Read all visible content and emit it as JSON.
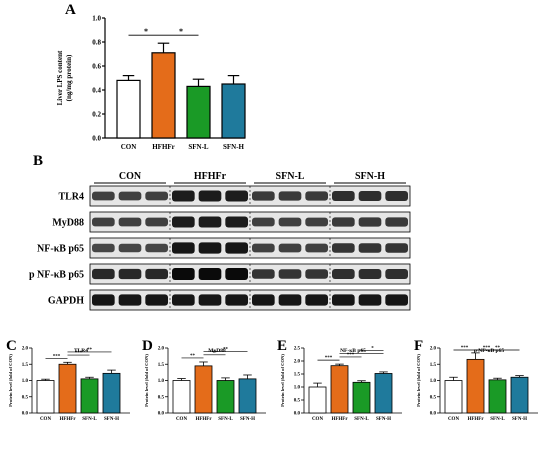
{
  "panel_letters": {
    "A": "A",
    "B": "B",
    "C": "C",
    "D": "D",
    "E": "E",
    "F": "F"
  },
  "colors": {
    "CON": "#ffffff",
    "HFHFr": "#e46c1a",
    "SFN-L": "#1a9a26",
    "SFN-H": "#1f7a9c",
    "axis": "#000000"
  },
  "blot": {
    "groups": [
      "CON",
      "HFHFr",
      "SFN-L",
      "SFN-H"
    ],
    "rows": [
      {
        "label": "TLR4",
        "intensity": [
          0.55,
          0.85,
          0.6,
          0.7
        ]
      },
      {
        "label": "MyD88",
        "intensity": [
          0.55,
          0.85,
          0.55,
          0.6
        ]
      },
      {
        "label": "NF-κB p65",
        "intensity": [
          0.5,
          0.9,
          0.55,
          0.65
        ]
      },
      {
        "label": "p NF-κB p65",
        "intensity": [
          0.75,
          1.0,
          0.65,
          0.7
        ]
      },
      {
        "label": "GAPDH",
        "intensity": [
          0.9,
          0.9,
          0.9,
          0.9
        ]
      }
    ]
  },
  "chart_data": [
    {
      "id": "A",
      "type": "bar",
      "categories": [
        "CON",
        "HFHFr",
        "SFN-L",
        "SFN-H"
      ],
      "values": [
        0.48,
        0.71,
        0.43,
        0.45
      ],
      "errors": [
        0.04,
        0.08,
        0.06,
        0.07
      ],
      "ylabel_line1": "Liver LPS content",
      "ylabel_line2": "(ng/mg protein)",
      "ylim": [
        0,
        1.0
      ],
      "yticks": [
        "0.0",
        "0.2",
        "0.4",
        "0.6",
        "0.8",
        "1.0"
      ],
      "significance": [
        {
          "from": 0,
          "to": 1,
          "label": "*"
        },
        {
          "from": 1,
          "to": 2,
          "label": "*"
        }
      ]
    },
    {
      "id": "C",
      "type": "bar",
      "title": "TLR4",
      "categories": [
        "CON",
        "HFHFr",
        "SFN-L",
        "SFN-H"
      ],
      "values": [
        1.0,
        1.5,
        1.05,
        1.22
      ],
      "errors": [
        0.04,
        0.06,
        0.05,
        0.1
      ],
      "ylabel": "Protein level (fold of CON)",
      "ylim": [
        0,
        2.0
      ],
      "yticks": [
        "0.0",
        "0.5",
        "1.0",
        "1.5",
        "2.0"
      ],
      "significance": [
        {
          "from": 0,
          "to": 1,
          "label": "***"
        },
        {
          "from": 1,
          "to": 2,
          "label": "***"
        },
        {
          "from": 1,
          "to": 3,
          "label": "**"
        }
      ]
    },
    {
      "id": "D",
      "type": "bar",
      "title": "MyD88",
      "categories": [
        "CON",
        "HFHFr",
        "SFN-L",
        "SFN-H"
      ],
      "values": [
        1.0,
        1.45,
        1.0,
        1.05
      ],
      "errors": [
        0.06,
        0.12,
        0.08,
        0.12
      ],
      "ylabel": "Protein level (fold of CON)",
      "ylim": [
        0,
        2.0
      ],
      "yticks": [
        "0.0",
        "0.5",
        "1.0",
        "1.5",
        "2.0"
      ],
      "significance": [
        {
          "from": 0,
          "to": 1,
          "label": "**"
        },
        {
          "from": 1,
          "to": 2,
          "label": "**"
        },
        {
          "from": 1,
          "to": 3,
          "label": "**"
        }
      ]
    },
    {
      "id": "E",
      "type": "bar",
      "title": "NF-κB p65",
      "categories": [
        "CON",
        "HFHFr",
        "SFN-L",
        "SFN-H"
      ],
      "values": [
        1.0,
        1.82,
        1.18,
        1.52
      ],
      "errors": [
        0.15,
        0.06,
        0.06,
        0.06
      ],
      "ylabel": "Protein level (fold of CON)",
      "ylim": [
        0,
        2.5
      ],
      "yticks": [
        "0.0",
        "0.5",
        "1.0",
        "1.5",
        "2.0",
        "2.5"
      ],
      "significance": [
        {
          "from": 0,
          "to": 1,
          "label": "***"
        },
        {
          "from": 1,
          "to": 2,
          "label": "***"
        },
        {
          "from": 1,
          "to": 3,
          "label": "*"
        },
        {
          "from": 2,
          "to": 3,
          "label": "*"
        }
      ]
    },
    {
      "id": "F",
      "type": "bar",
      "title": "p NF-κB p65",
      "categories": [
        "CON",
        "HFHFr",
        "SFN-L",
        "SFN-H"
      ],
      "values": [
        1.0,
        1.65,
        1.02,
        1.1
      ],
      "errors": [
        0.1,
        0.2,
        0.05,
        0.05
      ],
      "ylabel": "Protein level (fold of CON)",
      "ylim": [
        0,
        2.0
      ],
      "yticks": [
        "0.0",
        "0.5",
        "1.0",
        "1.5",
        "2.0"
      ],
      "significance": [
        {
          "from": 0,
          "to": 1,
          "label": "***"
        },
        {
          "from": 1,
          "to": 2,
          "label": "***"
        },
        {
          "from": 1,
          "to": 3,
          "label": "**"
        }
      ]
    }
  ]
}
